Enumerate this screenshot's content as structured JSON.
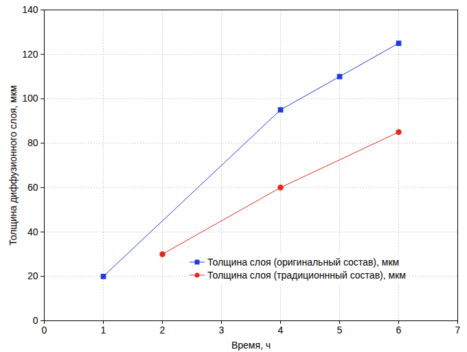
{
  "chart_data": {
    "type": "line",
    "x_label": "Время, ч",
    "y_label": "Толщина диффузионного слоя, мкм",
    "xlim": [
      0,
      7
    ],
    "xticks": [
      0,
      1,
      2,
      3,
      4,
      5,
      6,
      7
    ],
    "ylim": [
      0,
      140
    ],
    "yticks": [
      0,
      20,
      40,
      60,
      80,
      100,
      120,
      140
    ],
    "grid": true,
    "legend": "lower right",
    "series": [
      {
        "name": "Толщина слоя (оригинальный состав), мкм",
        "color": "#1f3adf",
        "marker": "square",
        "x": [
          1,
          4,
          5,
          6
        ],
        "values": [
          20,
          95,
          110,
          125
        ]
      },
      {
        "name": "Толщина слоя (традиционнный состав), мкм",
        "color": "#e5261c",
        "marker": "circle",
        "x": [
          2,
          4,
          6
        ],
        "values": [
          30,
          60,
          85
        ]
      }
    ]
  }
}
